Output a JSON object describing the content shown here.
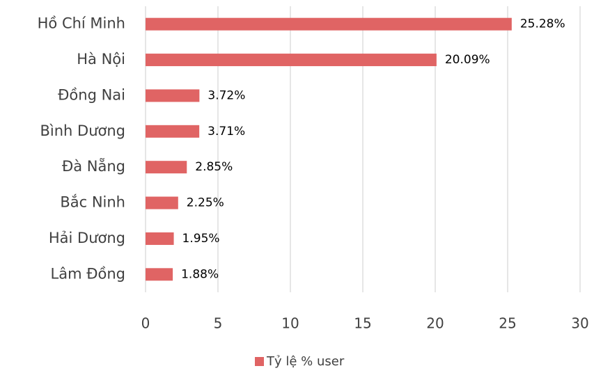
{
  "chart_data": {
    "type": "bar",
    "orientation": "horizontal",
    "categories": [
      "Hồ Chí Minh",
      "Hà Nội",
      "Đồng Nai",
      "Bình Dương",
      "Đà Nẵng",
      "Bắc Ninh",
      "Hải Dương",
      "Lâm Đồng"
    ],
    "series": [
      {
        "name": "Tỷ lệ % user",
        "color": "#e06464",
        "values": [
          25.28,
          20.09,
          3.72,
          3.71,
          2.85,
          2.25,
          1.95,
          1.88
        ],
        "value_labels": [
          "25.28%",
          "20.09%",
          "3.72%",
          "3.71%",
          "2.85%",
          "2.25%",
          "1.95%",
          "1.88%"
        ]
      }
    ],
    "xlim": [
      0,
      30
    ],
    "xticks": [
      0,
      5,
      10,
      15,
      20,
      25,
      30
    ],
    "grid": true,
    "legend": "bottom"
  }
}
